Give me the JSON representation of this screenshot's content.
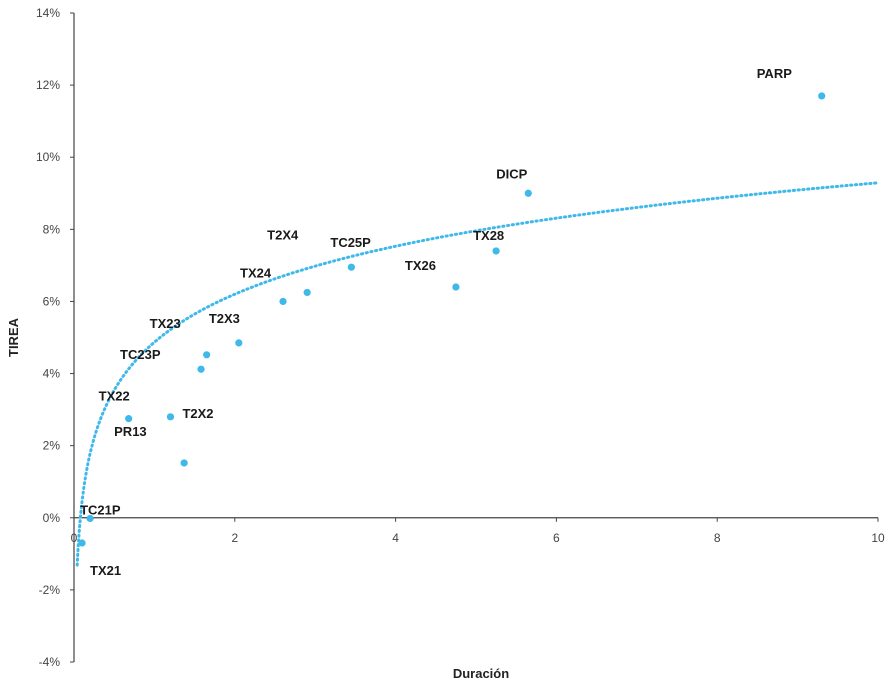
{
  "chart_data": {
    "type": "scatter",
    "title": "",
    "xlabel": "Duración",
    "ylabel": "TIREA",
    "xlim": [
      0,
      10
    ],
    "ylim": [
      -0.04,
      0.14
    ],
    "x_ticks": [
      {
        "value": 0,
        "label": "0"
      },
      {
        "value": 2,
        "label": "2"
      },
      {
        "value": 4,
        "label": "4"
      },
      {
        "value": 6,
        "label": "6"
      },
      {
        "value": 8,
        "label": "8"
      },
      {
        "value": 10,
        "label": "10"
      }
    ],
    "y_ticks": [
      {
        "value": -0.04,
        "label": "-4%"
      },
      {
        "value": -0.02,
        "label": "-2%"
      },
      {
        "value": 0.0,
        "label": "0%"
      },
      {
        "value": 0.02,
        "label": "2%"
      },
      {
        "value": 0.04,
        "label": "4%"
      },
      {
        "value": 0.06,
        "label": "6%"
      },
      {
        "value": 0.08,
        "label": "8%"
      },
      {
        "value": 0.1,
        "label": "10%"
      },
      {
        "value": 0.12,
        "label": "12%"
      },
      {
        "value": 0.14,
        "label": "14%"
      }
    ],
    "grid": false,
    "point_color": "#3fb8ea",
    "trendline": {
      "type": "logarithmic",
      "style": "dotted",
      "color": "#3fb8ea",
      "a": 0.0487,
      "b": 0.0192,
      "x_start": 0.04,
      "x_end": 10
    },
    "points": [
      {
        "label": "PARP",
        "x": 9.3,
        "y": 0.117,
        "label_dx": -65,
        "label_dy": -18
      },
      {
        "label": "DICP",
        "x": 5.65,
        "y": 0.09,
        "label_dx": -32,
        "label_dy": -15
      },
      {
        "label": "TX28",
        "x": 5.25,
        "y": 0.074,
        "label_dx": -23,
        "label_dy": -11
      },
      {
        "label": "TX26",
        "x": 4.75,
        "y": 0.064,
        "label_dx": -51,
        "label_dy": -17
      },
      {
        "label": "TC25P",
        "x": 3.45,
        "y": 0.0695,
        "label_dx": -21,
        "label_dy": -20
      },
      {
        "label": "T2X4",
        "x": 2.9,
        "y": 0.0625,
        "label_dx": -40,
        "label_dy": -53
      },
      {
        "label": "TX24",
        "x": 2.6,
        "y": 0.06,
        "label_dx": -43,
        "label_dy": -24
      },
      {
        "label": "T2X3",
        "x": 2.05,
        "y": 0.0485,
        "label_dx": -30,
        "label_dy": -20
      },
      {
        "label": "TX23",
        "x": 1.65,
        "y": 0.0452,
        "label_dx": -57,
        "label_dy": -27
      },
      {
        "label": "TC23P",
        "x": 1.58,
        "y": 0.0412,
        "label_dx": -81,
        "label_dy": -10
      },
      {
        "label": "T2X2",
        "x": 1.2,
        "y": 0.028,
        "label_dx": 12,
        "label_dy": 1
      },
      {
        "label": "TX22",
        "x": 0.68,
        "y": 0.0275,
        "label_dx": -30,
        "label_dy": -18
      },
      {
        "label": "PR13",
        "x": 1.37,
        "y": 0.0152,
        "label_dx": -70,
        "label_dy": -27
      },
      {
        "label": "TC21P",
        "x": 0.2,
        "y": -0.0002,
        "label_dx": -10,
        "label_dy": -4
      },
      {
        "label": "TX21",
        "x": 0.1,
        "y": -0.007,
        "label_dx": 8,
        "label_dy": 32
      }
    ]
  }
}
